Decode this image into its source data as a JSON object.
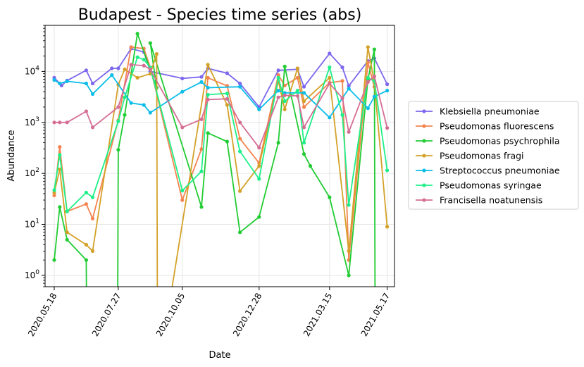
{
  "chart_data": {
    "type": "line",
    "title": "Budapest - Species time series (abs)",
    "xlabel": "Date",
    "ylabel": "Abundance",
    "yscale": "log",
    "ylim": [
      0.6,
      80000
    ],
    "xlim": [
      "2020-05-08",
      "2021-05-25"
    ],
    "x_ticks": [
      "2020.05.18",
      "2020.07.27",
      "2020.10.05",
      "2020.12.28",
      "2021.03.15",
      "2021.05.17"
    ],
    "y_ticks": [
      "10^0",
      "10^1",
      "10^2",
      "10^3",
      "10^4"
    ],
    "grid": true,
    "legend_position": "right-outside",
    "series": [
      {
        "name": "Klebsiella pneumoniae",
        "color": "#7b68ee",
        "points": [
          [
            "2020-05-18",
            7500
          ],
          [
            "2020-05-26",
            5300
          ],
          [
            "2020-06-01",
            6600
          ],
          [
            "2020-06-22",
            10500
          ],
          [
            "2020-06-29",
            5800
          ],
          [
            "2020-07-20",
            11500
          ],
          [
            "2020-07-27",
            11500
          ],
          [
            "2020-08-10",
            28000
          ],
          [
            "2020-08-24",
            24000
          ],
          [
            "2020-08-31",
            10000
          ],
          [
            "2020-10-05",
            7300
          ],
          [
            "2020-10-26",
            7800
          ],
          [
            "2020-11-02",
            11500
          ],
          [
            "2020-11-23",
            9200
          ],
          [
            "2020-12-07",
            5800
          ],
          [
            "2020-12-28",
            2000
          ],
          [
            "2021-01-18",
            10500
          ],
          [
            "2021-02-08",
            11000
          ],
          [
            "2021-02-15",
            5000
          ],
          [
            "2021-03-15",
            22500
          ],
          [
            "2021-03-29",
            12000
          ],
          [
            "2021-04-05",
            5200
          ],
          [
            "2021-04-26",
            16000
          ],
          [
            "2021-05-03",
            18000
          ],
          [
            "2021-05-17",
            5600
          ]
        ]
      },
      {
        "name": "Pseudomonas fluorescens",
        "color": "#f4844f",
        "points": [
          [
            "2020-05-18",
            37
          ],
          [
            "2020-05-24",
            330
          ],
          [
            "2020-06-01",
            18
          ],
          [
            "2020-06-22",
            25
          ],
          [
            "2020-06-29",
            13
          ],
          [
            "2020-07-27",
            1100
          ],
          [
            "2020-08-10",
            30000
          ],
          [
            "2020-08-24",
            28000
          ],
          [
            "2020-08-31",
            12000
          ],
          [
            "2020-10-05",
            30
          ],
          [
            "2020-10-26",
            300
          ],
          [
            "2020-11-02",
            7500
          ],
          [
            "2020-11-23",
            5200
          ],
          [
            "2020-12-07",
            480
          ],
          [
            "2020-12-28",
            160
          ],
          [
            "2021-01-18",
            8500
          ],
          [
            "2021-01-25",
            5300
          ],
          [
            "2021-02-08",
            7500
          ],
          [
            "2021-02-15",
            2000
          ],
          [
            "2021-03-15",
            6000
          ],
          [
            "2021-03-29",
            6500
          ],
          [
            "2021-04-05",
            2
          ],
          [
            "2021-04-26",
            15000
          ],
          [
            "2021-05-03",
            5000
          ]
        ]
      },
      {
        "name": "Pseudomonas psychrophila",
        "color": "#22cc33",
        "points": [
          [
            "2020-05-18",
            2
          ],
          [
            "2020-05-24",
            22
          ],
          [
            "2020-06-01",
            5
          ],
          [
            "2020-06-22",
            2
          ],
          [
            "2020-06-23",
            0.01
          ],
          [
            "2020-07-26",
            0.01
          ],
          [
            "2020-07-27",
            290
          ],
          [
            "2020-08-03",
            1400
          ],
          [
            "2020-08-17",
            55000
          ],
          [
            "2020-09-07",
            4800
          ],
          [
            "2020-08-31",
            36000
          ],
          [
            "2020-10-26",
            22
          ],
          [
            "2020-11-02",
            620
          ],
          [
            "2020-11-23",
            420
          ],
          [
            "2020-12-07",
            7
          ],
          [
            "2020-12-28",
            14
          ],
          [
            "2021-01-18",
            400
          ],
          [
            "2021-01-25",
            12500
          ],
          [
            "2021-02-15",
            240
          ],
          [
            "2021-02-22",
            140
          ],
          [
            "2021-03-15",
            34
          ],
          [
            "2021-04-05",
            1
          ],
          [
            "2021-04-26",
            7000
          ],
          [
            "2021-05-03",
            27000
          ],
          [
            "2021-05-04",
            0.01
          ]
        ]
      },
      {
        "name": "Pseudomonas fragi",
        "color": "#d4a128",
        "points": [
          [
            "2020-05-18",
            42
          ],
          [
            "2020-05-24",
            120
          ],
          [
            "2020-06-01",
            7
          ],
          [
            "2020-06-22",
            4
          ],
          [
            "2020-06-29",
            3
          ],
          [
            "2020-07-27",
            5500
          ],
          [
            "2020-08-03",
            11000
          ],
          [
            "2020-08-17",
            7500
          ],
          [
            "2020-08-31",
            9000
          ],
          [
            "2020-09-07",
            22000
          ],
          [
            "2020-09-08",
            0.01
          ],
          [
            "2020-11-02",
            13500
          ],
          [
            "2020-11-23",
            2200
          ],
          [
            "2020-12-07",
            45
          ],
          [
            "2020-12-28",
            140
          ],
          [
            "2021-01-18",
            6500
          ],
          [
            "2021-01-25",
            1800
          ],
          [
            "2021-02-08",
            11500
          ],
          [
            "2021-02-15",
            2600
          ],
          [
            "2021-03-15",
            7500
          ],
          [
            "2021-04-05",
            3
          ],
          [
            "2021-04-26",
            30000
          ],
          [
            "2021-05-03",
            6000
          ],
          [
            "2021-05-17",
            9
          ]
        ]
      },
      {
        "name": "Streptococcus pneumoniae",
        "color": "#0bbde8",
        "points": [
          [
            "2020-05-18",
            6800
          ],
          [
            "2020-05-24",
            5800
          ],
          [
            "2020-06-01",
            6400
          ],
          [
            "2020-06-22",
            5800
          ],
          [
            "2020-06-29",
            3600
          ],
          [
            "2020-07-20",
            8500
          ],
          [
            "2020-08-10",
            2400
          ],
          [
            "2020-08-24",
            2200
          ],
          [
            "2020-08-31",
            1550
          ],
          [
            "2020-10-05",
            4000
          ],
          [
            "2020-10-26",
            6200
          ],
          [
            "2020-11-02",
            4800
          ],
          [
            "2020-12-07",
            5000
          ],
          [
            "2020-12-28",
            1800
          ],
          [
            "2021-01-18",
            4200
          ],
          [
            "2021-01-25",
            3800
          ],
          [
            "2021-02-15",
            3800
          ],
          [
            "2021-03-15",
            1250
          ],
          [
            "2021-04-05",
            4600
          ],
          [
            "2021-04-26",
            1900
          ],
          [
            "2021-05-03",
            3200
          ],
          [
            "2021-05-17",
            4200
          ]
        ]
      },
      {
        "name": "Pseudomonas syringae",
        "color": "#1ef089",
        "points": [
          [
            "2020-05-18",
            47
          ],
          [
            "2020-05-24",
            230
          ],
          [
            "2020-06-01",
            18
          ],
          [
            "2020-06-22",
            42
          ],
          [
            "2020-06-29",
            34
          ],
          [
            "2020-07-27",
            1050
          ],
          [
            "2020-08-03",
            3100
          ],
          [
            "2020-08-17",
            19000
          ],
          [
            "2020-08-24",
            17000
          ],
          [
            "2020-08-31",
            12000
          ],
          [
            "2020-10-05",
            46
          ],
          [
            "2020-10-26",
            110
          ],
          [
            "2020-11-02",
            3500
          ],
          [
            "2020-11-23",
            3700
          ],
          [
            "2020-12-07",
            270
          ],
          [
            "2020-12-28",
            78
          ],
          [
            "2021-01-18",
            7500
          ],
          [
            "2021-01-25",
            2600
          ],
          [
            "2021-02-08",
            4200
          ],
          [
            "2021-02-15",
            400
          ],
          [
            "2021-03-15",
            12000
          ],
          [
            "2021-03-29",
            1400
          ],
          [
            "2021-04-05",
            24
          ],
          [
            "2021-04-26",
            7500
          ],
          [
            "2021-05-03",
            6500
          ],
          [
            "2021-05-17",
            115
          ]
        ]
      },
      {
        "name": "Francisella noatunensis",
        "color": "#d56e95",
        "points": [
          [
            "2020-05-18",
            1000
          ],
          [
            "2020-05-24",
            1000
          ],
          [
            "2020-06-01",
            1000
          ],
          [
            "2020-06-22",
            1650
          ],
          [
            "2020-06-29",
            800
          ],
          [
            "2020-07-27",
            2000
          ],
          [
            "2020-08-10",
            13500
          ],
          [
            "2020-08-24",
            13000
          ],
          [
            "2020-08-31",
            11000
          ],
          [
            "2020-10-05",
            800
          ],
          [
            "2020-10-26",
            1150
          ],
          [
            "2020-11-02",
            2800
          ],
          [
            "2020-11-23",
            2900
          ],
          [
            "2020-12-07",
            1000
          ],
          [
            "2020-12-28",
            320
          ],
          [
            "2021-01-18",
            3100
          ],
          [
            "2021-01-25",
            3400
          ],
          [
            "2021-02-08",
            3300
          ],
          [
            "2021-02-15",
            800
          ],
          [
            "2021-03-15",
            5800
          ],
          [
            "2021-03-29",
            3000
          ],
          [
            "2021-04-05",
            650
          ],
          [
            "2021-04-26",
            6200
          ],
          [
            "2021-05-03",
            8000
          ],
          [
            "2021-05-17",
            780
          ]
        ]
      }
    ]
  }
}
